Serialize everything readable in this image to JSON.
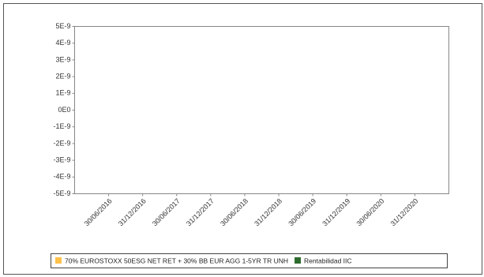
{
  "chart_data": {
    "type": "bar",
    "categories": [
      "30/06/2016",
      "31/12/2016",
      "30/06/2017",
      "31/12/2017",
      "30/06/2018",
      "31/12/2018",
      "30/06/2019",
      "31/12/2019",
      "30/06/2020",
      "31/12/2020"
    ],
    "series": [
      {
        "name": "70% EUROSTOXX 50ESG NET RET + 30% BB EUR AGG 1-5YR TR UNH",
        "color": "#ffc04a",
        "values": [
          null,
          null,
          null,
          null,
          null,
          null,
          null,
          null,
          null,
          null
        ]
      },
      {
        "name": "Rentabilidad IIC",
        "color": "#2e6b2e",
        "values": [
          null,
          null,
          null,
          null,
          null,
          null,
          null,
          null,
          null,
          null
        ]
      }
    ],
    "ylim": [
      -5e-09,
      5e-09
    ],
    "yticks": [
      {
        "value": 5e-09,
        "label": "5E-9"
      },
      {
        "value": 4e-09,
        "label": "4E-9"
      },
      {
        "value": 3e-09,
        "label": "3E-9"
      },
      {
        "value": 2e-09,
        "label": "2E-9"
      },
      {
        "value": 1e-09,
        "label": "1E-9"
      },
      {
        "value": 0,
        "label": "0E0"
      },
      {
        "value": -1e-09,
        "label": "-1E-9"
      },
      {
        "value": -2e-09,
        "label": "-2E-9"
      },
      {
        "value": -3e-09,
        "label": "-3E-9"
      },
      {
        "value": -4e-09,
        "label": "-4E-9"
      },
      {
        "value": -5e-09,
        "label": "-5E-9"
      }
    ],
    "legend": "bottom"
  }
}
